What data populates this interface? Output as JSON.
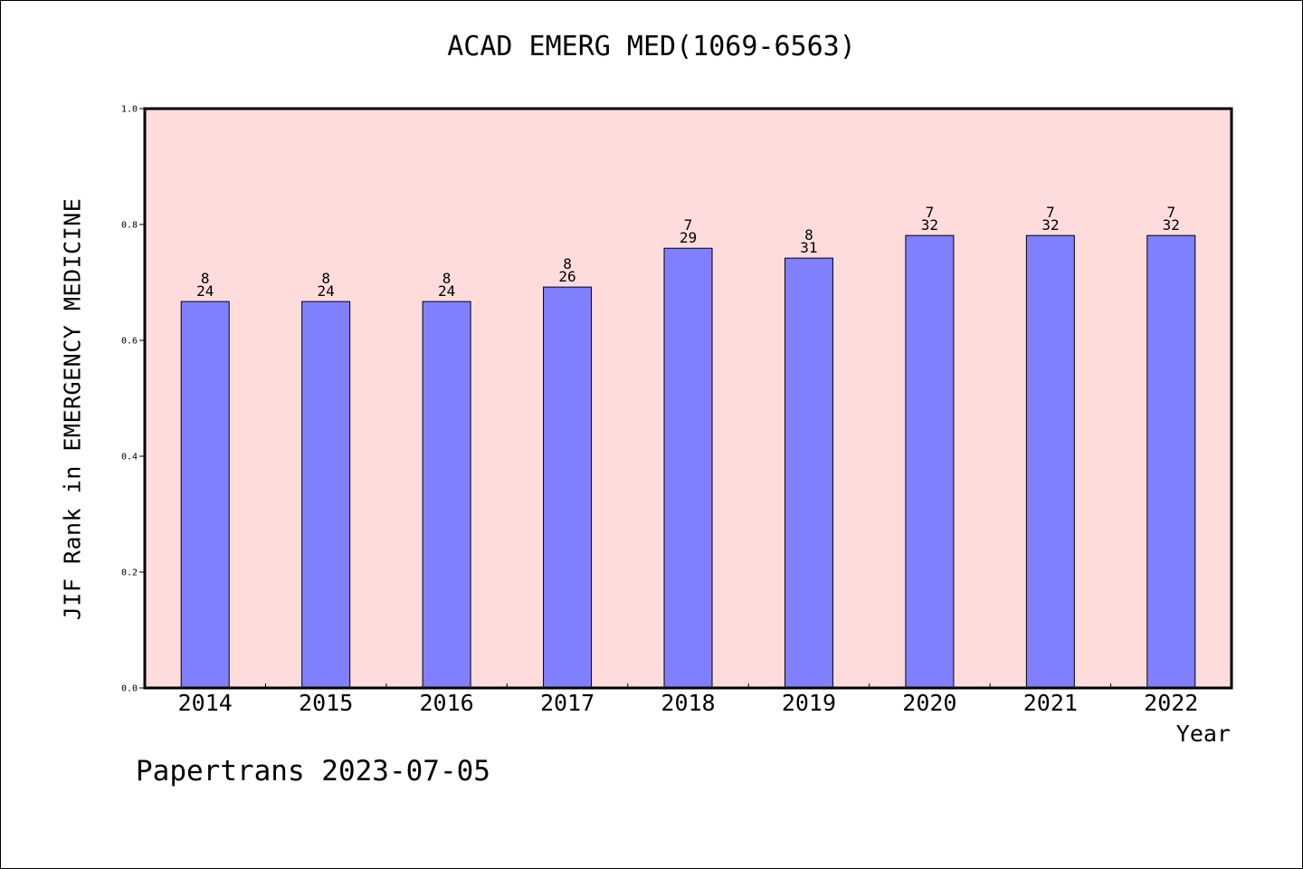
{
  "chart_data": {
    "type": "bar",
    "title": "ACAD EMERG MED(1069-6563)",
    "xlabel": "Year",
    "ylabel": "JIF Rank in EMERGENCY MEDICINE",
    "ylim": [
      0,
      1.0
    ],
    "yticks": [
      "0.0",
      "0.2",
      "0.4",
      "0.6",
      "0.8",
      "1.0"
    ],
    "categories": [
      "2014",
      "2015",
      "2016",
      "2017",
      "2018",
      "2019",
      "2020",
      "2021",
      "2022"
    ],
    "values": [
      0.667,
      0.667,
      0.667,
      0.692,
      0.759,
      0.742,
      0.781,
      0.781,
      0.781
    ],
    "labels": [
      {
        "top": "8",
        "bottom": "24"
      },
      {
        "top": "8",
        "bottom": "24"
      },
      {
        "top": "8",
        "bottom": "24"
      },
      {
        "top": "8",
        "bottom": "26"
      },
      {
        "top": "7",
        "bottom": "29"
      },
      {
        "top": "8",
        "bottom": "31"
      },
      {
        "top": "7",
        "bottom": "32"
      },
      {
        "top": "7",
        "bottom": "32"
      },
      {
        "top": "7",
        "bottom": "32"
      }
    ],
    "grid": false,
    "colors": {
      "plot_background": "#ffdcdc",
      "bar_fill": "#8080ff",
      "bar_stroke": "#000000"
    }
  },
  "footer": {
    "text": "Papertrans 2023-07-05"
  }
}
